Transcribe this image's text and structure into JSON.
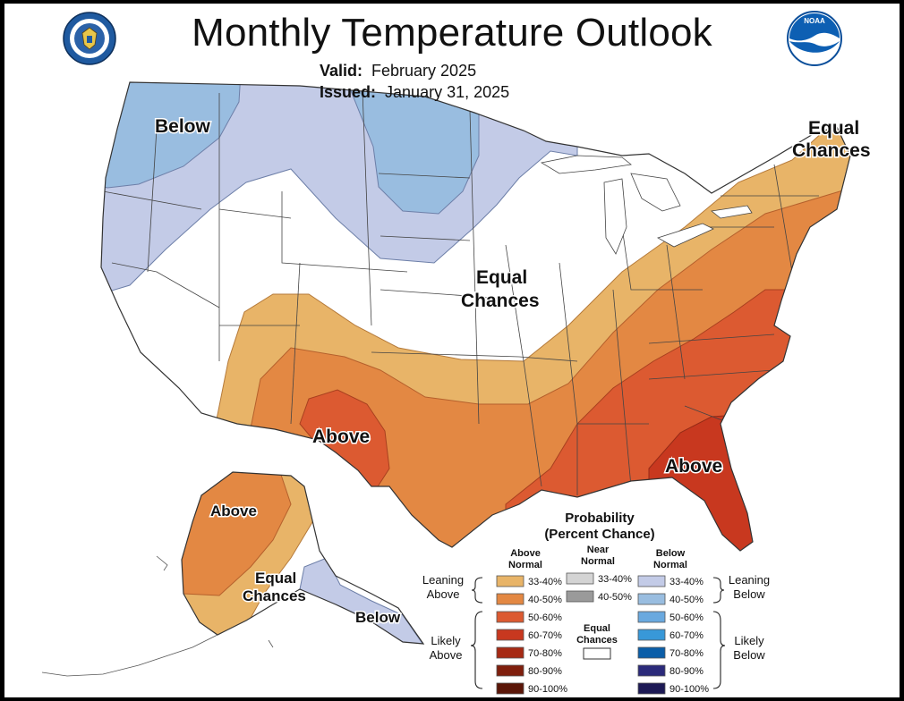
{
  "title": "Monthly Temperature Outlook",
  "valid_label": "Valid:",
  "valid_value": "February 2025",
  "issued_label": "Issued:",
  "issued_value": "January 31, 2025",
  "logos": {
    "left": "doc-seal-icon",
    "right": "noaa-logo-icon"
  },
  "map_labels": {
    "below_west": "Below",
    "equal_ne_1": "Equal",
    "equal_ne_2": "Chances",
    "equal_central_1": "Equal",
    "equal_central_2": "Chances",
    "above_sw": "Above",
    "above_se": "Above",
    "above_ak": "Above",
    "equal_ak_1": "Equal",
    "equal_ak_2": "Chances",
    "below_ak": "Below"
  },
  "legend": {
    "title_1": "Probability",
    "title_2": "(Percent Chance)",
    "above_head_1": "Above",
    "above_head_2": "Normal",
    "near_head_1": "Near",
    "near_head_2": "Normal",
    "below_head_1": "Below",
    "below_head_2": "Normal",
    "leaning_above_1": "Leaning",
    "leaning_above_2": "Above",
    "likely_above_1": "Likely",
    "likely_above_2": "Above",
    "leaning_below_1": "Leaning",
    "leaning_below_2": "Below",
    "likely_below_1": "Likely",
    "likely_below_2": "Below",
    "equal_1": "Equal",
    "equal_2": "Chances",
    "above": [
      {
        "range": "33-40%",
        "color": "#e8b468"
      },
      {
        "range": "40-50%",
        "color": "#e38843"
      },
      {
        "range": "50-60%",
        "color": "#dc5a31"
      },
      {
        "range": "60-70%",
        "color": "#c8381f"
      },
      {
        "range": "70-80%",
        "color": "#a62a14"
      },
      {
        "range": "80-90%",
        "color": "#7f1f0d"
      },
      {
        "range": "90-100%",
        "color": "#5a1608"
      }
    ],
    "near": [
      {
        "range": "33-40%",
        "color": "#d4d4d4"
      },
      {
        "range": "40-50%",
        "color": "#9a9a9a"
      }
    ],
    "below": [
      {
        "range": "33-40%",
        "color": "#c3cbe7"
      },
      {
        "range": "40-50%",
        "color": "#99bde0"
      },
      {
        "range": "50-60%",
        "color": "#6aa9df"
      },
      {
        "range": "60-70%",
        "color": "#3898d8"
      },
      {
        "range": "70-80%",
        "color": "#0b5ea8"
      },
      {
        "range": "80-90%",
        "color": "#2b2a7a"
      },
      {
        "range": "90-100%",
        "color": "#1d1a55"
      }
    ]
  }
}
